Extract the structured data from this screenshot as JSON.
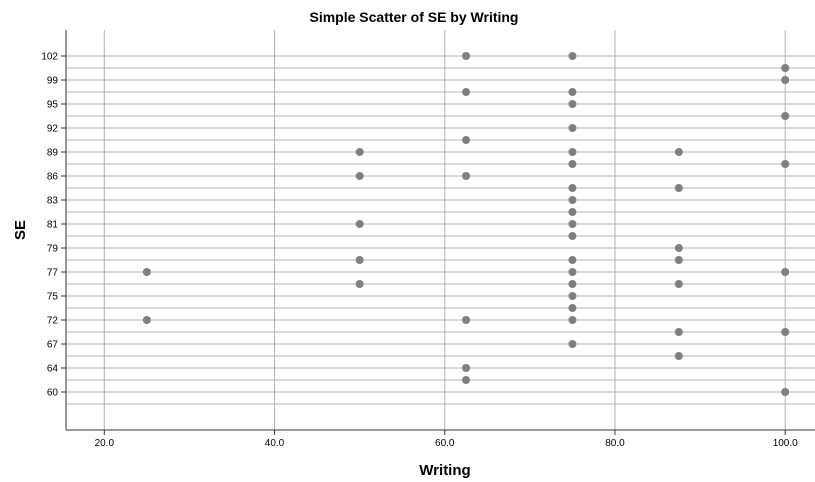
{
  "chart_data": {
    "type": "scatter",
    "title": "Simple Scatter of SE by Writing",
    "xlabel": "Writing",
    "ylabel": "SE",
    "xlim": [
      15.5,
      103.5
    ],
    "x_ticks": [
      "20.0",
      "40.0",
      "60.0",
      "80.0",
      "100.0"
    ],
    "y_categories": [
      "59",
      "60",
      "62",
      "64",
      "66",
      "67",
      "69",
      "72",
      "74",
      "75",
      "76",
      "77",
      "78",
      "79",
      "80",
      "81",
      "82",
      "83",
      "84",
      "86",
      "88",
      "89",
      "90",
      "92",
      "94",
      "95",
      "97",
      "99",
      "100",
      "102"
    ],
    "y_tick_labels": [
      "60",
      "64",
      "67",
      "72",
      "75",
      "77",
      "79",
      "81",
      "83",
      "86",
      "89",
      "92",
      "95",
      "99",
      "102"
    ],
    "grid": true,
    "marker_color": "#7f7f7f",
    "points": [
      {
        "x": 62.5,
        "y": "102"
      },
      {
        "x": 75,
        "y": "102"
      },
      {
        "x": 100,
        "y": "100"
      },
      {
        "x": 100,
        "y": "99"
      },
      {
        "x": 62.5,
        "y": "97"
      },
      {
        "x": 75,
        "y": "97"
      },
      {
        "x": 75,
        "y": "95"
      },
      {
        "x": 100,
        "y": "94"
      },
      {
        "x": 75,
        "y": "92"
      },
      {
        "x": 62.5,
        "y": "90"
      },
      {
        "x": 50,
        "y": "89"
      },
      {
        "x": 75,
        "y": "89"
      },
      {
        "x": 87.5,
        "y": "89"
      },
      {
        "x": 75,
        "y": "88"
      },
      {
        "x": 100,
        "y": "88"
      },
      {
        "x": 50,
        "y": "86"
      },
      {
        "x": 62.5,
        "y": "86"
      },
      {
        "x": 75,
        "y": "84"
      },
      {
        "x": 87.5,
        "y": "84"
      },
      {
        "x": 75,
        "y": "83"
      },
      {
        "x": 75,
        "y": "82"
      },
      {
        "x": 50,
        "y": "81"
      },
      {
        "x": 75,
        "y": "81"
      },
      {
        "x": 75,
        "y": "80"
      },
      {
        "x": 87.5,
        "y": "79"
      },
      {
        "x": 50,
        "y": "78"
      },
      {
        "x": 75,
        "y": "78"
      },
      {
        "x": 87.5,
        "y": "78"
      },
      {
        "x": 25,
        "y": "77"
      },
      {
        "x": 75,
        "y": "77"
      },
      {
        "x": 100,
        "y": "77"
      },
      {
        "x": 50,
        "y": "76"
      },
      {
        "x": 75,
        "y": "76"
      },
      {
        "x": 87.5,
        "y": "76"
      },
      {
        "x": 75,
        "y": "75"
      },
      {
        "x": 75,
        "y": "74"
      },
      {
        "x": 25,
        "y": "72"
      },
      {
        "x": 62.5,
        "y": "72"
      },
      {
        "x": 75,
        "y": "72"
      },
      {
        "x": 87.5,
        "y": "69"
      },
      {
        "x": 100,
        "y": "69"
      },
      {
        "x": 75,
        "y": "67"
      },
      {
        "x": 87.5,
        "y": "66"
      },
      {
        "x": 62.5,
        "y": "64"
      },
      {
        "x": 62.5,
        "y": "62"
      },
      {
        "x": 100,
        "y": "60"
      }
    ]
  }
}
